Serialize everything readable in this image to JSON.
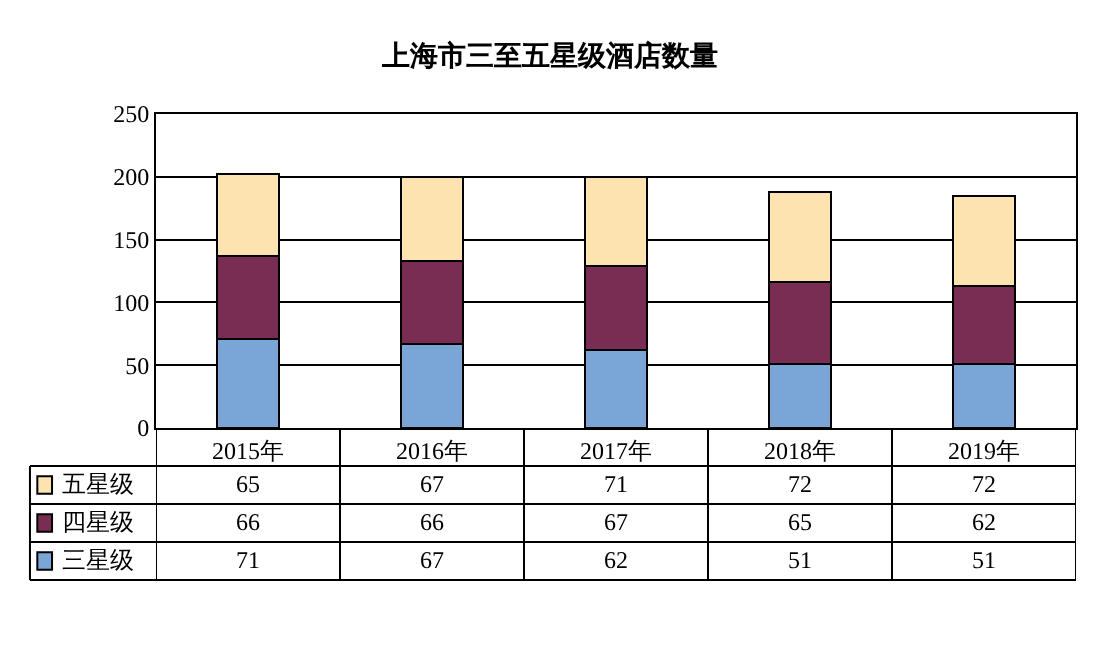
{
  "chart_data": {
    "type": "bar",
    "title": "上海市三至五星级酒店数量",
    "stacked": true,
    "categories": [
      "2015年",
      "2016年",
      "2017年",
      "2018年",
      "2019年"
    ],
    "series": [
      {
        "name": "三星级",
        "color": "#7aa6d6",
        "values": [
          71,
          67,
          62,
          51,
          51
        ]
      },
      {
        "name": "四星级",
        "color": "#7a2d52",
        "values": [
          66,
          66,
          67,
          65,
          62
        ]
      },
      {
        "name": "五星级",
        "color": "#fde3b0",
        "values": [
          65,
          67,
          71,
          72,
          72
        ]
      }
    ],
    "ylim": [
      0,
      250
    ],
    "yticks": [
      0,
      50,
      100,
      150,
      200,
      250
    ],
    "grid": "y",
    "legend": "bottom",
    "data_labels": true
  }
}
